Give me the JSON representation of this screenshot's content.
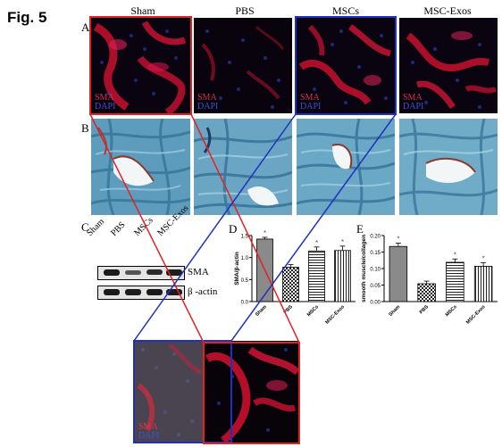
{
  "figure_label": "Fig. 5",
  "panel_letters": {
    "a": "A",
    "b": "B",
    "c": "C",
    "d": "D",
    "e": "E"
  },
  "groups": [
    "Sham",
    "PBS",
    "MSCs",
    "MSC-Exos"
  ],
  "stain_labels": {
    "sma": "SMA",
    "dapi": "DAPI"
  },
  "western_blot": {
    "lane_labels": [
      "Sham",
      "PBS",
      "MSCs",
      "MSC-Exos"
    ],
    "bands": [
      "SMA",
      "β -actin"
    ],
    "sma_intensity": [
      0.95,
      0.55,
      0.8,
      0.9
    ]
  },
  "colors": {
    "highlight_red": "#e32222",
    "highlight_blue": "#2030c0",
    "sma_red": "#d01030",
    "dapi_blue": "#2830a0"
  },
  "chart_data": [
    {
      "type": "bar",
      "panel": "D",
      "categories": [
        "Sham",
        "PBS",
        "MSCs",
        "MSC-Exos"
      ],
      "values": [
        1.42,
        0.78,
        1.15,
        1.16
      ],
      "errors": [
        0.04,
        0.06,
        0.09,
        0.1
      ],
      "significance": [
        "*",
        "",
        "*",
        "*"
      ],
      "ylabel": "SMA/β-actin",
      "ylim": [
        0.0,
        1.5
      ],
      "yticks": [
        "0.0",
        "0.5",
        "1.0",
        "1.5"
      ],
      "fills": [
        "gray",
        "checker",
        "horizontal-stripes",
        "vertical-stripes"
      ]
    },
    {
      "type": "bar",
      "panel": "E",
      "categories": [
        "Sham",
        "PBS",
        "MSCs",
        "MSC-Exos"
      ],
      "values": [
        0.167,
        0.054,
        0.119,
        0.107
      ],
      "errors": [
        0.01,
        0.008,
        0.01,
        0.011
      ],
      "significance": [
        "*",
        "",
        "*",
        "*"
      ],
      "ylabel": "smooth muscle/collagen",
      "ylim": [
        0.0,
        0.2
      ],
      "yticks": [
        "0.00",
        "0.05",
        "0.10",
        "0.15",
        "0.20"
      ],
      "fills": [
        "gray",
        "checker",
        "horizontal-stripes",
        "vertical-stripes"
      ]
    }
  ]
}
